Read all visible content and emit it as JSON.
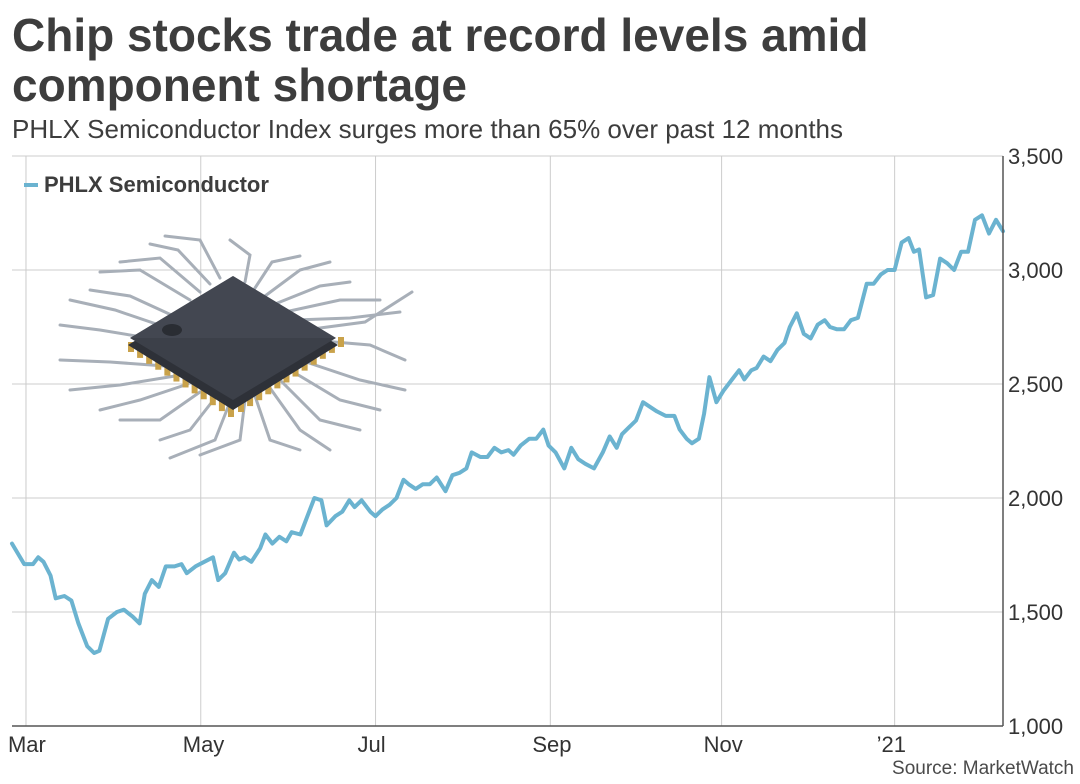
{
  "chart_data": {
    "type": "line",
    "title": "Chip stocks trade at record levels amid component shortage",
    "subtitle": "PHLX Semiconductor Index surges more than 65% over past 12 months",
    "source": "Source: MarketWatch",
    "legend": "PHLX Semiconductor",
    "legend_position": "top-left",
    "ylim": [
      1000,
      3500
    ],
    "yticks": [
      1000,
      1500,
      2000,
      2500,
      3000,
      3500
    ],
    "ytick_labels": [
      "1,000",
      "1,500",
      "2,000",
      "2,500",
      "3,000",
      "3,500"
    ],
    "xlim": [
      0,
      52
    ],
    "xticks": [
      0.8,
      10.8,
      20.8,
      30.8,
      40.6,
      50.5
    ],
    "xtick_labels": [
      "Mar",
      "May",
      "Jul",
      "Sep",
      "Nov",
      "’21"
    ],
    "grid": true,
    "colors": {
      "line": "#6bb3d0",
      "grid": "#cccccc",
      "axis": "#555555"
    },
    "series": [
      {
        "name": "PHLX Semiconductor",
        "points": [
          [
            0,
            1800
          ],
          [
            0.7,
            1710
          ],
          [
            1.2,
            1710
          ],
          [
            1.5,
            1740
          ],
          [
            1.8,
            1720
          ],
          [
            2.2,
            1660
          ],
          [
            2.5,
            1560
          ],
          [
            3.0,
            1570
          ],
          [
            3.4,
            1550
          ],
          [
            3.8,
            1450
          ],
          [
            4.3,
            1350
          ],
          [
            4.7,
            1320
          ],
          [
            5.0,
            1330
          ],
          [
            5.5,
            1470
          ],
          [
            6.0,
            1500
          ],
          [
            6.4,
            1510
          ],
          [
            6.9,
            1480
          ],
          [
            7.3,
            1450
          ],
          [
            7.6,
            1580
          ],
          [
            8.0,
            1640
          ],
          [
            8.4,
            1610
          ],
          [
            8.8,
            1700
          ],
          [
            9.3,
            1700
          ],
          [
            9.7,
            1710
          ],
          [
            10.0,
            1670
          ],
          [
            10.5,
            1700
          ],
          [
            11.0,
            1720
          ],
          [
            11.5,
            1740
          ],
          [
            11.8,
            1640
          ],
          [
            12.2,
            1670
          ],
          [
            12.7,
            1760
          ],
          [
            13.0,
            1730
          ],
          [
            13.3,
            1740
          ],
          [
            13.7,
            1720
          ],
          [
            14.2,
            1780
          ],
          [
            14.5,
            1840
          ],
          [
            14.9,
            1800
          ],
          [
            15.3,
            1830
          ],
          [
            15.7,
            1810
          ],
          [
            16.0,
            1850
          ],
          [
            16.5,
            1840
          ],
          [
            16.9,
            1920
          ],
          [
            17.3,
            2000
          ],
          [
            17.7,
            1990
          ],
          [
            18.0,
            1880
          ],
          [
            18.5,
            1920
          ],
          [
            18.9,
            1940
          ],
          [
            19.3,
            1990
          ],
          [
            19.6,
            1960
          ],
          [
            20.0,
            1990
          ],
          [
            20.5,
            1940
          ],
          [
            20.8,
            1920
          ],
          [
            21.2,
            1950
          ],
          [
            21.6,
            1970
          ],
          [
            22.0,
            2000
          ],
          [
            22.4,
            2080
          ],
          [
            22.7,
            2060
          ],
          [
            23.1,
            2040
          ],
          [
            23.5,
            2060
          ],
          [
            23.9,
            2060
          ],
          [
            24.3,
            2090
          ],
          [
            24.8,
            2030
          ],
          [
            25.2,
            2100
          ],
          [
            25.6,
            2110
          ],
          [
            26.0,
            2130
          ],
          [
            26.3,
            2200
          ],
          [
            26.8,
            2180
          ],
          [
            27.2,
            2180
          ],
          [
            27.6,
            2220
          ],
          [
            28.0,
            2200
          ],
          [
            28.4,
            2210
          ],
          [
            28.7,
            2190
          ],
          [
            29.1,
            2230
          ],
          [
            29.6,
            2260
          ],
          [
            30.0,
            2260
          ],
          [
            30.4,
            2300
          ],
          [
            30.7,
            2230
          ],
          [
            31.1,
            2200
          ],
          [
            31.6,
            2130
          ],
          [
            32.0,
            2220
          ],
          [
            32.4,
            2170
          ],
          [
            32.8,
            2150
          ],
          [
            33.3,
            2130
          ],
          [
            33.8,
            2200
          ],
          [
            34.2,
            2270
          ],
          [
            34.6,
            2220
          ],
          [
            34.9,
            2280
          ],
          [
            35.3,
            2310
          ],
          [
            35.7,
            2340
          ],
          [
            36.1,
            2420
          ],
          [
            36.5,
            2400
          ],
          [
            36.9,
            2380
          ],
          [
            37.4,
            2360
          ],
          [
            37.9,
            2360
          ],
          [
            38.2,
            2300
          ],
          [
            38.6,
            2260
          ],
          [
            38.9,
            2240
          ],
          [
            39.3,
            2260
          ],
          [
            39.6,
            2370
          ],
          [
            39.9,
            2530
          ],
          [
            40.3,
            2420
          ],
          [
            40.7,
            2470
          ],
          [
            41.2,
            2520
          ],
          [
            41.6,
            2560
          ],
          [
            41.9,
            2520
          ],
          [
            42.3,
            2560
          ],
          [
            42.6,
            2570
          ],
          [
            43.0,
            2620
          ],
          [
            43.4,
            2600
          ],
          [
            43.8,
            2650
          ],
          [
            44.2,
            2680
          ],
          [
            44.5,
            2750
          ],
          [
            44.9,
            2810
          ],
          [
            45.3,
            2720
          ],
          [
            45.7,
            2700
          ],
          [
            46.1,
            2760
          ],
          [
            46.5,
            2780
          ],
          [
            46.8,
            2750
          ],
          [
            47.2,
            2740
          ],
          [
            47.6,
            2740
          ],
          [
            48.0,
            2780
          ],
          [
            48.4,
            2790
          ],
          [
            48.9,
            2940
          ],
          [
            49.3,
            2940
          ],
          [
            49.7,
            2980
          ],
          [
            50.1,
            3000
          ],
          [
            50.5,
            3000
          ],
          [
            50.9,
            3120
          ],
          [
            51.3,
            3140
          ],
          [
            51.6,
            3080
          ],
          [
            51.9,
            3090
          ],
          [
            52.3,
            2880
          ],
          [
            52.7,
            2890
          ],
          [
            53.1,
            3050
          ],
          [
            53.5,
            3030
          ],
          [
            53.9,
            3000
          ],
          [
            54.3,
            3080
          ],
          [
            54.7,
            3080
          ],
          [
            55.1,
            3220
          ],
          [
            55.5,
            3240
          ],
          [
            55.9,
            3160
          ],
          [
            56.3,
            3220
          ],
          [
            56.7,
            3170
          ]
        ]
      }
    ]
  }
}
